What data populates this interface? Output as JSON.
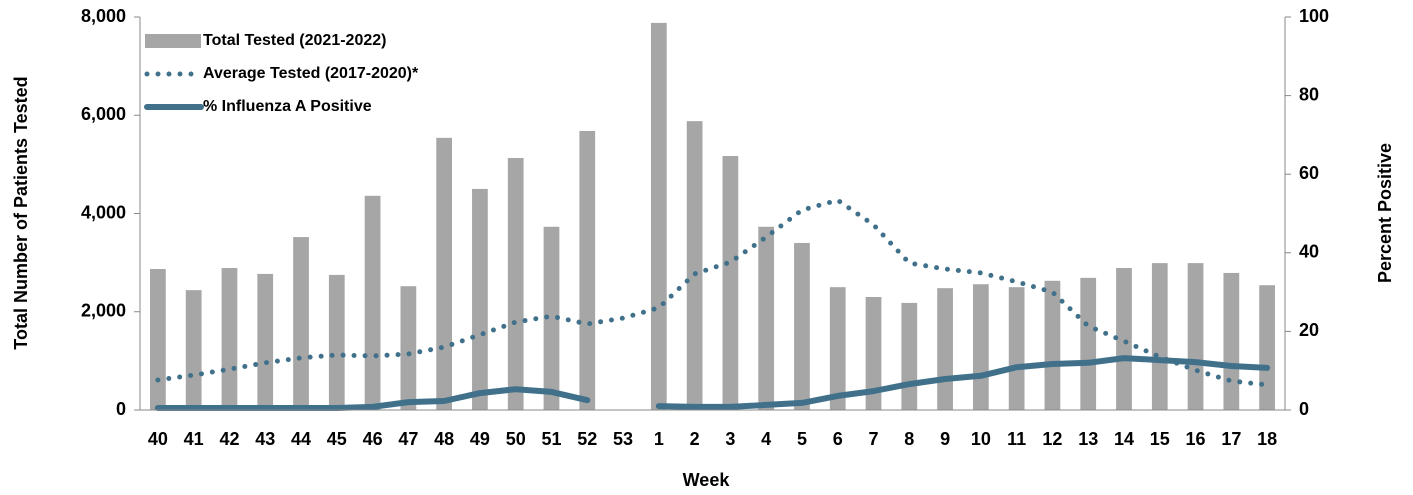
{
  "chart_data": {
    "type": "bar",
    "x_label": "Week",
    "y_label": "Total Number of Patients Tested",
    "y2_label": "Percent Positive",
    "categories": [
      "40",
      "41",
      "42",
      "43",
      "44",
      "45",
      "46",
      "47",
      "48",
      "49",
      "50",
      "51",
      "52",
      "53",
      "1",
      "2",
      "3",
      "4",
      "5",
      "6",
      "7",
      "8",
      "9",
      "10",
      "11",
      "12",
      "13",
      "14",
      "15",
      "16",
      "17",
      "18"
    ],
    "series": [
      {
        "name": "Total Tested (2021-2022)",
        "type": "bar",
        "color": "#a6a6a6",
        "values": [
          2870,
          2440,
          2890,
          2770,
          3520,
          2750,
          4360,
          2520,
          5540,
          4500,
          5130,
          3730,
          5680,
          null,
          7880,
          5880,
          5170,
          3730,
          3400,
          2500,
          2300,
          2180,
          2480,
          2560,
          2500,
          2630,
          2690,
          2890,
          2990,
          2990,
          2790,
          2540
        ]
      },
      {
        "name": "Average Tested (2017-2020)*",
        "type": "line",
        "style": "dotted",
        "color": "#41718a",
        "values": [
          610,
          710,
          830,
          960,
          1060,
          1120,
          1100,
          1140,
          1280,
          1530,
          1790,
          1910,
          1750,
          1870,
          2080,
          2770,
          3010,
          3520,
          4070,
          4270,
          3770,
          2990,
          2870,
          2790,
          2610,
          2400,
          1710,
          1400,
          1080,
          810,
          590,
          510
        ]
      },
      {
        "name": "% Influenza A Positive",
        "type": "line",
        "style": "solid",
        "color": "#41718a",
        "axis": "y2",
        "values": [
          0.5,
          0.5,
          0.5,
          0.5,
          0.5,
          0.5,
          0.8,
          2,
          2.3,
          4.3,
          5.3,
          4.6,
          2.5,
          null,
          1.0,
          0.8,
          0.8,
          1.3,
          1.8,
          3.6,
          4.8,
          6.6,
          7.9,
          8.7,
          10.9,
          11.7,
          12,
          13.2,
          12.7,
          12.2,
          11.2,
          10.7
        ]
      }
    ],
    "ylim": [
      0,
      8000
    ],
    "yticks": [
      0,
      {
        "value": 2000,
        "label": "2,000"
      },
      {
        "value": 4000,
        "label": "4,000"
      },
      {
        "value": 6000,
        "label": "6,000"
      },
      {
        "value": 8000,
        "label": "8,000"
      }
    ],
    "y2lim": [
      0,
      100
    ],
    "y2ticks": [
      0,
      20,
      40,
      60,
      80,
      100
    ],
    "legend": "upper left",
    "grid": false
  }
}
